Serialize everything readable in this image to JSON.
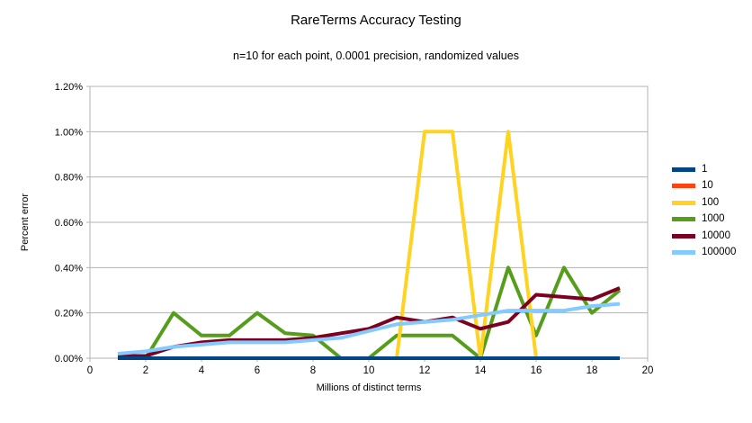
{
  "chart_data": {
    "type": "line",
    "title": "RareTerms Accuracy Testing",
    "subtitle": "n=10 for each point, 0.0001 precision, randomized values",
    "xlabel": "Millions of distinct terms",
    "ylabel": "Percent error",
    "xlim": [
      0,
      20
    ],
    "ylim": [
      0,
      1.2
    ],
    "xticks": [
      0,
      2,
      4,
      6,
      8,
      10,
      12,
      14,
      16,
      18,
      20
    ],
    "ytick_values": [
      0,
      0.2,
      0.4,
      0.6,
      0.8,
      1.0,
      1.2
    ],
    "yticks": [
      "0.00%",
      "0.20%",
      "0.40%",
      "0.60%",
      "0.80%",
      "1.00%",
      "1.20%"
    ],
    "grid": "horizontal",
    "legend_position": "right",
    "x": [
      1,
      2,
      3,
      4,
      5,
      6,
      7,
      8,
      9,
      10,
      11,
      12,
      13,
      14,
      15,
      16,
      17,
      18,
      19
    ],
    "series": [
      {
        "name": "1",
        "color": "#004586",
        "values": [
          0,
          0,
          0,
          0,
          0,
          0,
          0,
          0,
          0,
          0,
          0,
          0,
          0,
          0,
          0,
          0,
          0,
          0,
          0
        ]
      },
      {
        "name": "10",
        "color": "#FF420E",
        "values": [
          0,
          0,
          0,
          0,
          0,
          0,
          0,
          0,
          0,
          0,
          0,
          0,
          0,
          0,
          0,
          0,
          0,
          0,
          0
        ]
      },
      {
        "name": "100",
        "color": "#FFD320",
        "values": [
          0,
          0,
          0,
          0,
          0,
          0,
          0,
          0,
          0,
          0,
          0,
          1.0,
          1.0,
          0,
          1.0,
          0,
          0,
          0,
          0
        ]
      },
      {
        "name": "1000",
        "color": "#579D1C",
        "values": [
          0.01,
          0,
          0.2,
          0.1,
          0.1,
          0.2,
          0.11,
          0.1,
          0,
          0,
          0.1,
          0.1,
          0.1,
          0,
          0.4,
          0.1,
          0.4,
          0.2,
          0.3
        ]
      },
      {
        "name": "10000",
        "color": "#7E0021",
        "values": [
          0.01,
          0.01,
          0.05,
          0.07,
          0.08,
          0.08,
          0.08,
          0.09,
          0.11,
          0.13,
          0.18,
          0.16,
          0.18,
          0.13,
          0.16,
          0.28,
          0.27,
          0.26,
          0.31
        ]
      },
      {
        "name": "100000",
        "color": "#83CAFF",
        "values": [
          0.02,
          0.03,
          0.05,
          0.06,
          0.07,
          0.07,
          0.07,
          0.08,
          0.09,
          0.12,
          0.15,
          0.16,
          0.17,
          0.19,
          0.21,
          0.21,
          0.21,
          0.23,
          0.24
        ]
      }
    ],
    "colors": {
      "grid": "#b3b3b3",
      "axis": "#b3b3b3",
      "text": "#000000",
      "background": "#ffffff"
    }
  }
}
